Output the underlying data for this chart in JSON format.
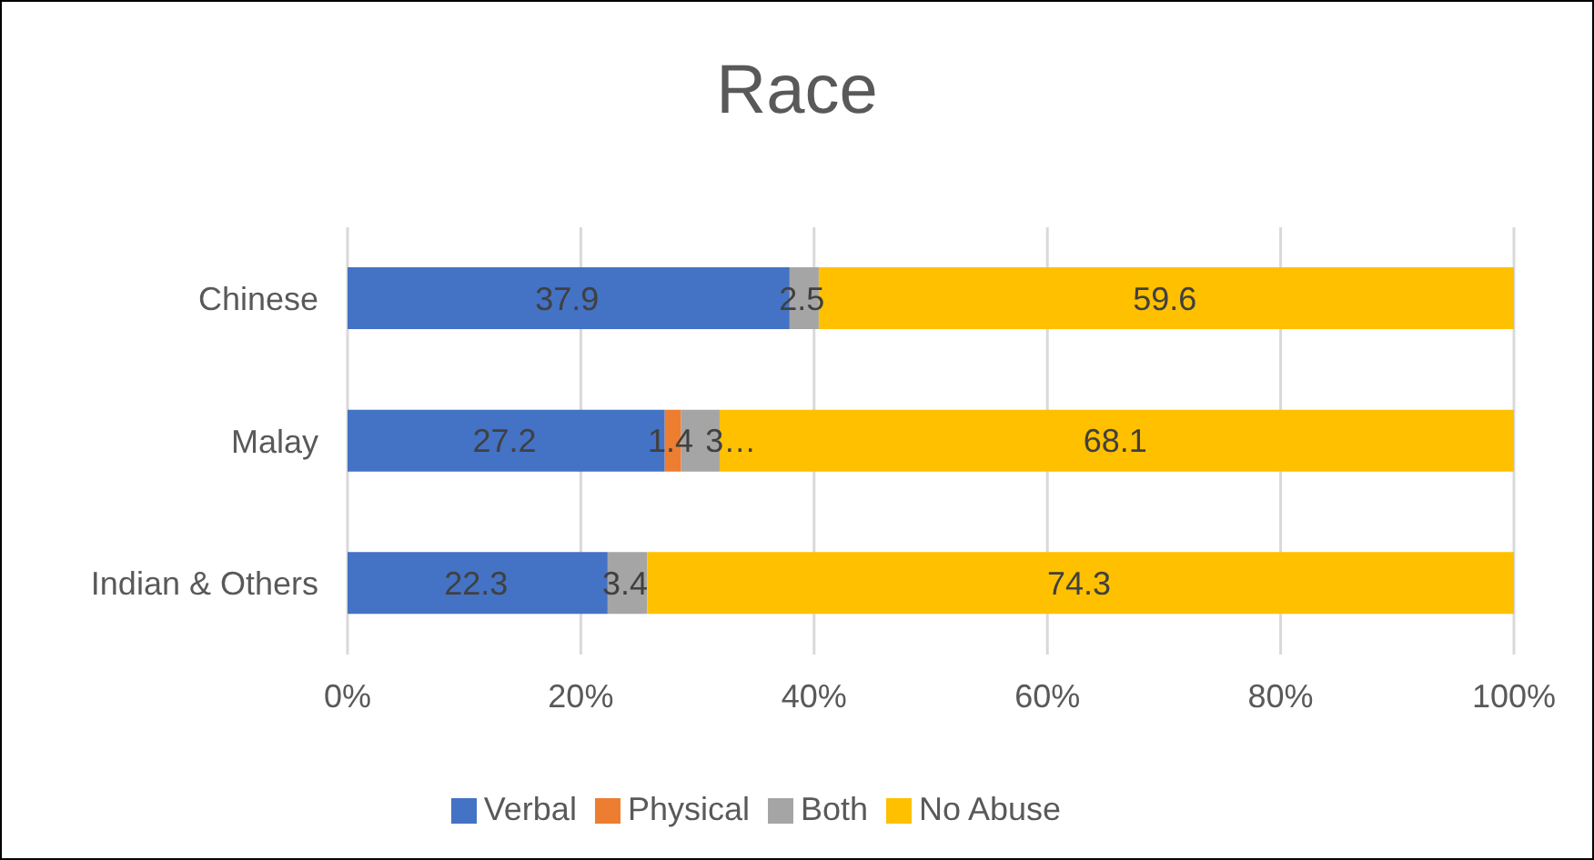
{
  "chart_data": {
    "type": "bar",
    "orientation": "horizontal",
    "stacked": true,
    "title": "Race",
    "categories": [
      "Chinese",
      "Malay",
      "Indian & Others"
    ],
    "series": [
      {
        "name": "Verbal",
        "color": "#4472c4",
        "values": [
          37.9,
          27.2,
          22.3
        ],
        "value_labels": [
          "37.9",
          "27.2",
          "22.3"
        ]
      },
      {
        "name": "Physical",
        "color": "#ed7d31",
        "values": [
          null,
          1.4,
          null
        ],
        "value_labels": [
          null,
          "1.4",
          null
        ]
      },
      {
        "name": "Both",
        "color": "#a5a5a5",
        "values": [
          2.5,
          3.3,
          3.4
        ],
        "value_labels": [
          "2.5",
          "3…",
          "3.4"
        ]
      },
      {
        "name": "No Abuse",
        "color": "#ffc000",
        "values": [
          59.6,
          68.1,
          74.3
        ],
        "value_labels": [
          "59.6",
          "68.1",
          "74.3"
        ]
      }
    ],
    "xlim": [
      0,
      100
    ],
    "xticks": [
      {
        "value": 0,
        "label": "0%"
      },
      {
        "value": 20,
        "label": "20%"
      },
      {
        "value": 40,
        "label": "40%"
      },
      {
        "value": 60,
        "label": "60%"
      },
      {
        "value": 80,
        "label": "80%"
      },
      {
        "value": 100,
        "label": "100%"
      }
    ],
    "grid": "x",
    "legend": "bottom"
  }
}
